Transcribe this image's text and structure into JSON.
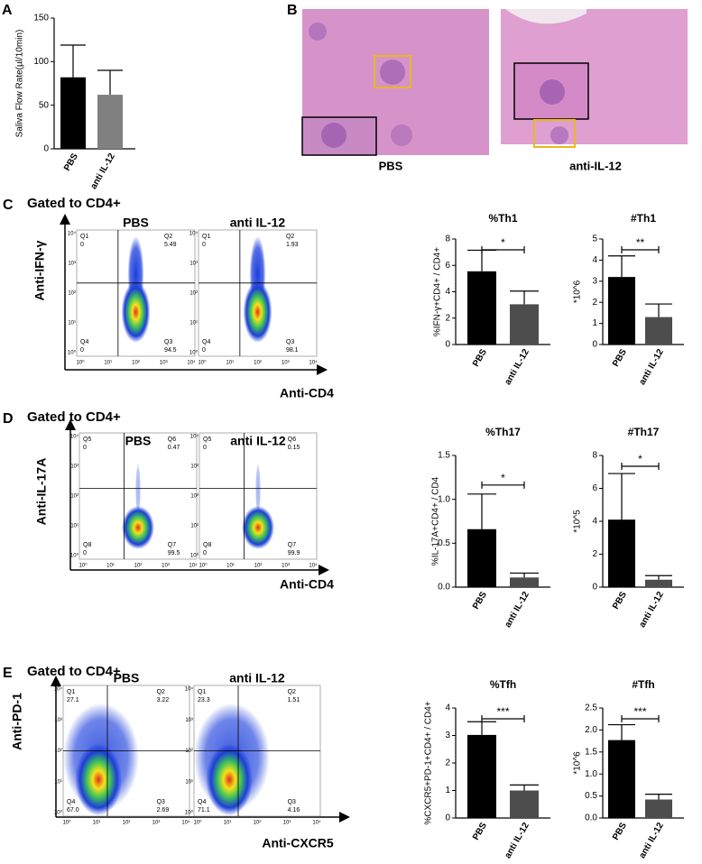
{
  "letters": [
    "A",
    "B",
    "C",
    "D",
    "E"
  ],
  "histology": {
    "captions": [
      "PBS",
      "anti-IL-12"
    ]
  },
  "flow": [
    {
      "gate": "Gated to CD4+",
      "y_label": "Anti-IFN-γ",
      "x_label": "Anti-CD4",
      "log_ticks": [
        "10⁰",
        "10¹",
        "10²",
        "10³",
        "10⁴"
      ],
      "plots": [
        {
          "title": "PBS",
          "quadrants": [
            {
              "name": "Q1",
              "value": "0"
            },
            {
              "name": "Q2",
              "value": "5.49"
            },
            {
              "name": "Q4",
              "value": "0"
            },
            {
              "name": "Q3",
              "value": "94.5"
            }
          ]
        },
        {
          "title": "anti IL-12",
          "quadrants": [
            {
              "name": "Q1",
              "value": "0"
            },
            {
              "name": "Q2",
              "value": "1.93"
            },
            {
              "name": "Q4",
              "value": "0"
            },
            {
              "name": "Q3",
              "value": "98.1"
            }
          ]
        }
      ]
    },
    {
      "gate": "Gated to CD4+",
      "y_label": "Anti-IL-17A",
      "x_label": "Anti-CD4",
      "log_ticks": [
        "10⁰",
        "10¹",
        "10²",
        "10³",
        "10⁴"
      ],
      "plots": [
        {
          "title": "PBS",
          "quadrants": [
            {
              "name": "Q5",
              "value": "0"
            },
            {
              "name": "Q6",
              "value": "0.47"
            },
            {
              "name": "Q8",
              "value": "0"
            },
            {
              "name": "Q7",
              "value": "99.5"
            }
          ]
        },
        {
          "title": "anti IL-12",
          "quadrants": [
            {
              "name": "Q5",
              "value": "0"
            },
            {
              "name": "Q6",
              "value": "0.15"
            },
            {
              "name": "Q8",
              "value": "0"
            },
            {
              "name": "Q7",
              "value": "99.9"
            }
          ]
        }
      ]
    },
    {
      "gate": "Gated to CD4+",
      "y_label": "Anti-PD-1",
      "x_label": "Anti-CXCR5",
      "log_ticks": [
        "10⁰",
        "10¹",
        "10²",
        "10³",
        "10⁴"
      ],
      "plots": [
        {
          "title": "PBS",
          "quadrants": [
            {
              "name": "Q1",
              "value": "27.1"
            },
            {
              "name": "Q2",
              "value": "3.22"
            },
            {
              "name": "Q4",
              "value": "67.0"
            },
            {
              "name": "Q3",
              "value": "2.69"
            }
          ]
        },
        {
          "title": "anti IL-12",
          "quadrants": [
            {
              "name": "Q1",
              "value": "23.3"
            },
            {
              "name": "Q2",
              "value": "1.51"
            },
            {
              "name": "Q4",
              "value": "71.1"
            },
            {
              "name": "Q3",
              "value": "4.16"
            }
          ]
        }
      ]
    }
  ],
  "chart_data": [
    {
      "type": "bar",
      "y_label": "Saliva Flow Rate(µl/10min)",
      "categories": [
        "PBS",
        "anti IL-12"
      ],
      "values": [
        82,
        62
      ],
      "errors": [
        37,
        28
      ],
      "colors": [
        "#000000",
        "#808080"
      ],
      "ylim": [
        0,
        150
      ],
      "yticks": [
        0,
        50,
        100,
        150
      ]
    },
    {
      "type": "bar",
      "title": "%Th1",
      "y_label": "%IFN-γ+CD4+ / CD4+",
      "categories": [
        "PBS",
        "anti IL-12"
      ],
      "values": [
        5.55,
        3.05
      ],
      "errors": [
        1.6,
        1.0
      ],
      "colors": [
        "#000000",
        "#4d4d4d"
      ],
      "ylim": [
        0,
        8
      ],
      "yticks": [
        0,
        2,
        4,
        6,
        8
      ],
      "significance": "*"
    },
    {
      "type": "bar",
      "title": "#Th1",
      "y_label": "*10^6",
      "categories": [
        "PBS",
        "anti IL-12"
      ],
      "values": [
        3.2,
        1.3
      ],
      "errors": [
        1.0,
        0.62
      ],
      "colors": [
        "#000000",
        "#4d4d4d"
      ],
      "ylim": [
        0,
        5
      ],
      "yticks": [
        0,
        1,
        2,
        3,
        4,
        5
      ],
      "significance": "**"
    },
    {
      "type": "bar",
      "title": "%Th17",
      "y_label": "%IL-17A+CD4+ / CD4",
      "categories": [
        "PBS",
        "anti IL-12"
      ],
      "values": [
        0.66,
        0.11
      ],
      "errors": [
        0.4,
        0.05
      ],
      "colors": [
        "#000000",
        "#4d4d4d"
      ],
      "ylim": [
        0,
        1.5
      ],
      "yticks": [
        {
          "value": 0,
          "label": "0.0"
        },
        0.5,
        {
          "value": 1,
          "label": "1.0"
        },
        1.5
      ],
      "significance": "*"
    },
    {
      "type": "bar",
      "title": "#Th17",
      "y_label": "*10^5",
      "categories": [
        "PBS",
        "anti IL-12"
      ],
      "values": [
        4.1,
        0.45
      ],
      "errors": [
        2.8,
        0.25
      ],
      "colors": [
        "#000000",
        "#4d4d4d"
      ],
      "ylim": [
        0,
        8
      ],
      "yticks": [
        0,
        2,
        4,
        6,
        8
      ],
      "significance": "*"
    },
    {
      "type": "bar",
      "title": "%Tfh",
      "y_label": "%CXCR5+PD-1+CD4+ / CD4+",
      "categories": [
        "PBS",
        "anti IL-12"
      ],
      "values": [
        3.02,
        1.0
      ],
      "errors": [
        0.48,
        0.2
      ],
      "colors": [
        "#000000",
        "#4d4d4d"
      ],
      "ylim": [
        0,
        4
      ],
      "yticks": [
        0,
        1,
        2,
        3,
        4
      ],
      "significance": "***"
    },
    {
      "type": "bar",
      "title": "#Tfh",
      "y_label": "*10^6",
      "categories": [
        "PBS",
        "anti IL-12"
      ],
      "values": [
        1.77,
        0.42
      ],
      "errors": [
        0.35,
        0.12
      ],
      "colors": [
        "#000000",
        "#4d4d4d"
      ],
      "ylim": [
        0,
        2.5
      ],
      "yticks": [
        {
          "value": 0,
          "label": "0.0"
        },
        0.5,
        {
          "value": 1,
          "label": "1.0"
        },
        1.5,
        {
          "value": 2,
          "label": "2.0"
        },
        2.5
      ],
      "significance": "***"
    }
  ]
}
